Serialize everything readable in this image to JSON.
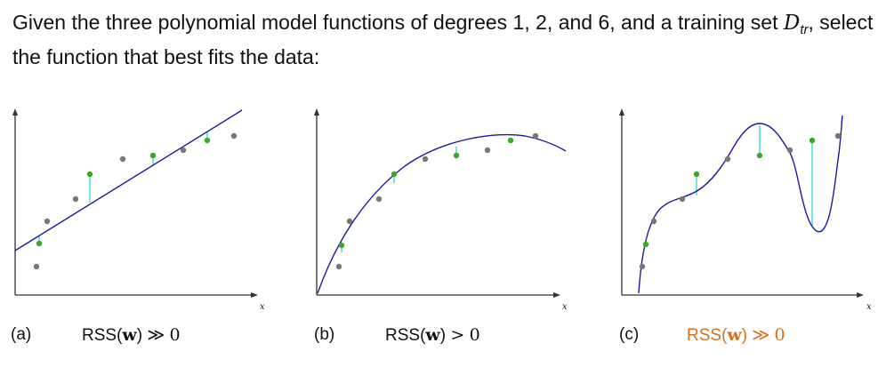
{
  "question": {
    "text_before": "Given the three polynomial model functions of degrees 1, 2, and 6, and a training set ",
    "dataset_symbol": "D",
    "dataset_subscript": "tr",
    "text_after": ", select the function that best fits the data:"
  },
  "plots": [
    {
      "label": "(a)",
      "rss_prefix": "RSS(",
      "rss_var": "w",
      "rss_suffix": ")",
      "rss_relation": "≫",
      "rss_value": "0",
      "x_axis_label": "x",
      "highlight": false
    },
    {
      "label": "(b)",
      "rss_prefix": "RSS(",
      "rss_var": "w",
      "rss_suffix": ")",
      "rss_relation": ">",
      "rss_value": "0",
      "x_axis_label": "x",
      "highlight": false
    },
    {
      "label": "(c)",
      "rss_prefix": "RSS(",
      "rss_var": "w",
      "rss_suffix": ")",
      "rss_relation": "≫",
      "rss_value": "0",
      "x_axis_label": "x",
      "highlight": true
    }
  ],
  "colors": {
    "curve": "#1a1aa0",
    "residual": "#33dddd",
    "training_point": "#3aaa22",
    "other_point": "#777777",
    "highlight_text": "#d4701c"
  }
}
